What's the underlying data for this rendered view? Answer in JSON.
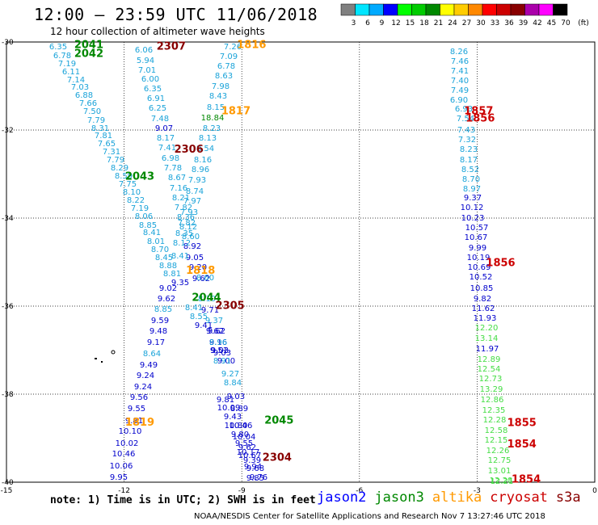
{
  "header": {
    "title": "12:00 – 23:59 UTC 11/06/2018",
    "subtitle": "12 hour collection of altimeter wave heights"
  },
  "scale": {
    "unit": "(ft)",
    "labels": [
      "3",
      "6",
      "9",
      "12",
      "15",
      "18",
      "21",
      "24",
      "27",
      "30",
      "33",
      "36",
      "39",
      "42",
      "45",
      "70"
    ],
    "colors": [
      "#808080",
      "#00e5ff",
      "#00aaff",
      "#0000ff",
      "#00ff00",
      "#00cc00",
      "#008800",
      "#ffff00",
      "#ffcc00",
      "#ff8800",
      "#ff0000",
      "#cc0000",
      "#880000",
      "#aa00aa",
      "#ff00ff",
      "#000000"
    ]
  },
  "axes": {
    "x_ticks": [
      "-15",
      "-12",
      "-9",
      "-6",
      "-3",
      "0"
    ],
    "y_ticks": [
      "-30",
      "-32",
      "-34",
      "-36",
      "-38",
      "-40"
    ],
    "lon_range": [
      -15,
      0
    ],
    "lat_range": [
      -40,
      -30
    ]
  },
  "footer": {
    "note": "note: 1) Time is in UTC; 2) SWH is in feet",
    "credit": "NOAA/NESDIS Center for Satellite Applications and Research    Nov  7 13:27:46 UTC 2018"
  },
  "satellites": [
    {
      "name": "jason2",
      "color": "#0000ff"
    },
    {
      "name": "jason3",
      "color": "#008800"
    },
    {
      "name": "altika",
      "color": "#ff9900"
    },
    {
      "name": "cryosat",
      "color": "#cc0000"
    },
    {
      "name": "s3a",
      "color": "#880000"
    }
  ],
  "tracks": {
    "track_a": {
      "color": "#0000aa",
      "values": [
        "6.35",
        "6.78",
        "7.19",
        "6.11",
        "7.14",
        "7.03",
        "6.88",
        "7.66",
        "7.50",
        "7.79",
        "8.31",
        "7.81",
        "7.65",
        "7.31",
        "7.79",
        "8.29",
        "8.59",
        "7.75",
        "8.10",
        "8.22",
        "7.19",
        "8.06",
        "8.85",
        "8.41",
        "8.01",
        "8.70",
        "8.45",
        "8.88",
        "8.81",
        "9.35",
        "9.02",
        "9.62",
        "8.85",
        "9.59",
        "9.48",
        "9.17",
        "8.64",
        "9.49",
        "9.24",
        "9.24",
        "9.56",
        "9.55",
        "9.81",
        "10.10",
        "10.02",
        "10.46",
        "10.06",
        "9.95"
      ],
      "colors": [
        "#1aa3d9",
        "#1aa3d9",
        "#1aa3d9",
        "#1aa3d9",
        "#1aa3d9",
        "#1aa3d9",
        "#1aa3d9",
        "#1aa3d9",
        "#1aa3d9",
        "#1aa3d9",
        "#1aa3d9",
        "#1aa3d9",
        "#1aa3d9",
        "#1aa3d9",
        "#1aa3d9",
        "#1aa3d9",
        "#1aa3d9",
        "#1aa3d9",
        "#1aa3d9",
        "#1aa3d9",
        "#1aa3d9",
        "#1aa3d9",
        "#1aa3d9",
        "#1aa3d9",
        "#1aa3d9",
        "#1aa3d9",
        "#1aa3d9",
        "#1aa3d9",
        "#1aa3d9",
        "#0000cc",
        "#0000cc",
        "#0000cc",
        "#1aa3d9",
        "#0000cc",
        "#0000cc",
        "#0000cc",
        "#1aa3d9",
        "#0000cc",
        "#0000cc",
        "#0000cc",
        "#0000cc",
        "#0000cc",
        "#0000cc",
        "#0000cc",
        "#0000cc",
        "#0000cc",
        "#0000cc",
        "#0000cc"
      ]
    },
    "track_b": {
      "values": [
        "6.06",
        "5.94",
        "7.01",
        "6.00",
        "6.35",
        "6.91",
        "6.25",
        "7.48",
        "9.07",
        "8.17",
        "7.41",
        "6.98",
        "7.78",
        "8.67",
        "7.16",
        "8.21",
        "7.82",
        "8.36",
        "8.12",
        "8.60",
        "8.92",
        "9.05",
        "9.20",
        "9.62",
        "8.41",
        "8.55",
        "9.41",
        "9.62",
        "9.16",
        "9.51",
        "9.03",
        "9.00",
        "9.27",
        "8.84",
        "9.03",
        "8.89",
        "10.46",
        "10.04",
        "9.62",
        "10.67",
        "9.94",
        "9.85"
      ],
      "colors": [
        "#1aa3d9",
        "#1aa3d9",
        "#1aa3d9",
        "#1aa3d9",
        "#1aa3d9",
        "#1aa3d9",
        "#1aa3d9",
        "#1aa3d9",
        "#0000cc",
        "#1aa3d9",
        "#1aa3d9",
        "#1aa3d9",
        "#1aa3d9",
        "#1aa3d9",
        "#1aa3d9",
        "#1aa3d9",
        "#1aa3d9",
        "#1aa3d9",
        "#1aa3d9",
        "#1aa3d9",
        "#0000cc",
        "#0000cc",
        "#0000cc",
        "#0000cc",
        "#1aa3d9",
        "#1aa3d9",
        "#0000cc",
        "#0000cc",
        "#0000cc",
        "#0000cc",
        "#0000cc",
        "#0000cc",
        "#1aa3d9",
        "#1aa3d9",
        "#0000cc",
        "#0000cc",
        "#0000cc",
        "#0000cc",
        "#0000cc",
        "#0000cc",
        "#0000cc",
        "#0000cc"
      ]
    },
    "track_c": {
      "values": [
        "7.26",
        "7.09",
        "6.78",
        "8.63",
        "7.98",
        "8.43",
        "8.15",
        "18.84",
        "8.23",
        "8.13",
        "8.54",
        "8.16",
        "8.96",
        "7.93",
        "8.74",
        "7.97",
        "7.93",
        "7.82",
        "8.35",
        "8.12",
        "8.41",
        "8.60",
        "8.10",
        "9.71",
        "9.37",
        "9.62",
        "8.96",
        "9.03",
        "8.91",
        "9.81",
        "10.09",
        "9.43",
        "10.80",
        "9.80",
        "9.55",
        "10.17",
        "9.39",
        "9.68",
        "9.76"
      ],
      "colors": [
        "#1aa3d9",
        "#1aa3d9",
        "#1aa3d9",
        "#1aa3d9",
        "#1aa3d9",
        "#1aa3d9",
        "#1aa3d9",
        "#008800",
        "#1aa3d9",
        "#1aa3d9",
        "#1aa3d9",
        "#1aa3d9",
        "#1aa3d9",
        "#1aa3d9",
        "#1aa3d9",
        "#1aa3d9",
        "#1aa3d9",
        "#1aa3d9",
        "#1aa3d9",
        "#1aa3d9",
        "#1aa3d9",
        "#1aa3d9",
        "#1aa3d9",
        "#0000cc",
        "#1aa3d9",
        "#0000cc",
        "#1aa3d9",
        "#0000cc",
        "#1aa3d9",
        "#0000cc",
        "#0000cc",
        "#0000cc",
        "#0000cc",
        "#0000cc",
        "#0000cc",
        "#0000cc",
        "#0000cc",
        "#0000cc",
        "#0000cc"
      ]
    },
    "track_d": {
      "values": [
        "8.26",
        "7.46",
        "7.41",
        "7.40",
        "7.49",
        "6.90",
        "6.93",
        "7.54",
        "7.43",
        "7.32",
        "8.23",
        "8.17",
        "8.52",
        "8.70",
        "8.97",
        "9.37",
        "10.12",
        "10.23",
        "10.57",
        "10.67",
        "9.99",
        "10.19",
        "10.69",
        "10.52",
        "10.85",
        "9.82",
        "11.62",
        "11.93",
        "12.20",
        "13.14",
        "11.97",
        "12.89",
        "12.54",
        "12.73",
        "13.29",
        "12.86",
        "12.35",
        "12.28",
        "12.58",
        "12.15",
        "12.26",
        "12.75",
        "13.01",
        "12.28",
        "12.21"
      ],
      "colors": [
        "#1aa3d9",
        "#1aa3d9",
        "#1aa3d9",
        "#1aa3d9",
        "#1aa3d9",
        "#1aa3d9",
        "#1aa3d9",
        "#1aa3d9",
        "#1aa3d9",
        "#1aa3d9",
        "#1aa3d9",
        "#1aa3d9",
        "#1aa3d9",
        "#1aa3d9",
        "#1aa3d9",
        "#0000cc",
        "#0000cc",
        "#0000cc",
        "#0000cc",
        "#0000cc",
        "#0000cc",
        "#0000cc",
        "#0000cc",
        "#0000cc",
        "#0000cc",
        "#0000cc",
        "#0000cc",
        "#0000cc",
        "#44dd44",
        "#44dd44",
        "#0000cc",
        "#44dd44",
        "#44dd44",
        "#44dd44",
        "#44dd44",
        "#44dd44",
        "#44dd44",
        "#44dd44",
        "#44dd44",
        "#44dd44",
        "#44dd44",
        "#44dd44",
        "#44dd44",
        "#44dd44",
        "#44dd44"
      ]
    }
  },
  "pass_times": [
    {
      "label": "2041",
      "color": "#008800",
      "lon": -12.9,
      "lat": -30.05
    },
    {
      "label": "2042",
      "color": "#008800",
      "lon": -12.9,
      "lat": -30.25
    },
    {
      "label": "2307",
      "color": "#880000",
      "lon": -10.8,
      "lat": -30.08
    },
    {
      "label": "1816",
      "color": "#ff9900",
      "lon": -8.75,
      "lat": -30.05
    },
    {
      "label": "1817",
      "color": "#ff9900",
      "lon": -9.15,
      "lat": -31.55
    },
    {
      "label": "1857",
      "color": "#cc0000",
      "lon": -2.96,
      "lat": -31.55
    },
    {
      "label": "1856",
      "color": "#cc0000",
      "lon": -2.92,
      "lat": -31.72
    },
    {
      "label": "2306",
      "color": "#880000",
      "lon": -10.35,
      "lat": -32.42
    },
    {
      "label": "2043",
      "color": "#008800",
      "lon": -11.6,
      "lat": -33.04
    },
    {
      "label": "1856",
      "color": "#cc0000",
      "lon": -2.4,
      "lat": -35.0
    },
    {
      "label": "1818",
      "color": "#ff9900",
      "lon": -10.05,
      "lat": -35.17
    },
    {
      "label": "2044",
      "color": "#008800",
      "lon": -9.9,
      "lat": -35.79
    },
    {
      "label": "2305",
      "color": "#880000",
      "lon": -9.3,
      "lat": -35.97
    },
    {
      "label": "1819",
      "color": "#ff9900",
      "lon": -11.6,
      "lat": -38.62
    },
    {
      "label": "2045",
      "color": "#008800",
      "lon": -8.05,
      "lat": -38.58
    },
    {
      "label": "1855",
      "color": "#cc0000",
      "lon": -1.86,
      "lat": -38.63
    },
    {
      "label": "1854",
      "color": "#cc0000",
      "lon": -1.86,
      "lat": -39.12
    },
    {
      "label": "2304",
      "color": "#880000",
      "lon": -8.1,
      "lat": -39.42
    },
    {
      "label": "1854",
      "color": "#cc0000",
      "lon": -1.75,
      "lat": -39.92
    }
  ]
}
